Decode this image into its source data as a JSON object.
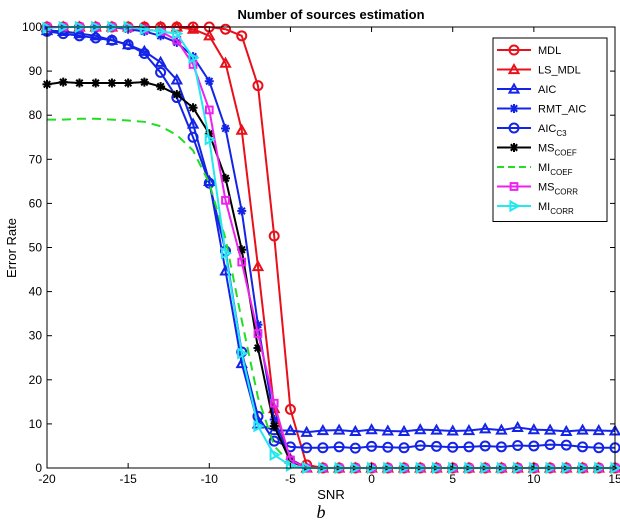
{
  "chart_data": {
    "type": "line",
    "title": "Number of sources estimation",
    "xlabel": "SNR",
    "ylabel": "Error Rate",
    "caption": "b",
    "xlim": [
      -20,
      15
    ],
    "ylim": [
      0,
      100
    ],
    "xticks": [
      -20,
      -15,
      -10,
      -5,
      0,
      5,
      10,
      15
    ],
    "yticks": [
      0,
      10,
      20,
      30,
      40,
      50,
      60,
      70,
      80,
      90,
      100
    ],
    "grid": false,
    "legend_position": "top-right",
    "x": [
      -20,
      -19,
      -18,
      -17,
      -16,
      -15,
      -14,
      -13,
      -12,
      -11,
      -10,
      -9,
      -8,
      -7,
      -6,
      -5,
      -4,
      -3,
      -2,
      -1,
      0,
      1,
      2,
      3,
      4,
      5,
      6,
      7,
      8,
      9,
      10,
      11,
      12,
      13,
      14,
      15
    ],
    "series": [
      {
        "name": "MDL",
        "sub": "",
        "color": "#e8101a",
        "marker": "circle",
        "dash": "",
        "values": [
          100,
          100,
          100,
          100,
          100,
          100,
          100,
          100,
          100,
          100,
          100,
          99.5,
          98,
          86.7,
          52.6,
          13.3,
          0.7,
          0,
          0,
          0,
          0,
          0,
          0,
          0,
          0,
          0,
          0,
          0,
          0,
          0,
          0,
          0,
          0,
          0,
          0,
          0
        ]
      },
      {
        "name": "LS_MDL",
        "sub": "",
        "color": "#e8101a",
        "marker": "triangle-up",
        "dash": "",
        "values": [
          100,
          100,
          100,
          100,
          100,
          100,
          100,
          100,
          100,
          99.5,
          98,
          91.8,
          76.6,
          45.7,
          13.5,
          2,
          0,
          0,
          0,
          0,
          0,
          0,
          0,
          0,
          0,
          0,
          0,
          0,
          0,
          0,
          0,
          0,
          0,
          0,
          0,
          0
        ]
      },
      {
        "name": "AIC",
        "sub": "",
        "color": "#1424e6",
        "marker": "triangle-up",
        "dash": "",
        "values": [
          99.2,
          99,
          98.5,
          98,
          97,
          96,
          94.5,
          92,
          88,
          78,
          65,
          44.7,
          23.7,
          10,
          8.5,
          8.5,
          8.1,
          8.5,
          8.6,
          8.3,
          8.7,
          8.4,
          8.3,
          8.7,
          8.6,
          8.4,
          8.5,
          8.9,
          8.6,
          9.2,
          8.7,
          8.6,
          8.3,
          8.6,
          8.5,
          8.4
        ]
      },
      {
        "name": "RMT_AIC",
        "sub": "",
        "color": "#1424e6",
        "marker": "star",
        "dash": "",
        "values": [
          100,
          100,
          100,
          100,
          100,
          99.5,
          99,
          98,
          96.5,
          93.3,
          87.7,
          77,
          58.3,
          32.5,
          11,
          2,
          0,
          0,
          0,
          0,
          0,
          0,
          0,
          0,
          0,
          0,
          0,
          0,
          0,
          0,
          0,
          0,
          0,
          0,
          0,
          0
        ]
      },
      {
        "name": "AIC",
        "sub": "C3",
        "color": "#1424e6",
        "marker": "circle",
        "dash": "",
        "values": [
          99,
          98.5,
          98,
          97.5,
          97,
          96,
          94,
          89.7,
          84,
          75,
          64.6,
          49.2,
          26.3,
          11.7,
          6.1,
          4.8,
          4.6,
          4.6,
          4.8,
          4.5,
          4.9,
          4.7,
          4.6,
          5.1,
          4.9,
          4.7,
          4.8,
          5,
          4.8,
          5.1,
          5,
          5.3,
          5.2,
          4.8,
          4.6,
          4.6
        ]
      },
      {
        "name": "MS",
        "sub": "COEF",
        "color": "#000000",
        "marker": "star",
        "dash": "",
        "values": [
          87,
          87.5,
          87.3,
          87.3,
          87.3,
          87.3,
          87.5,
          86.5,
          84.7,
          81.7,
          75.8,
          65.7,
          49.5,
          27.2,
          9.5,
          1.5,
          0,
          0,
          0,
          0,
          0,
          0,
          0,
          0,
          0,
          0,
          0,
          0,
          0,
          0,
          0,
          0,
          0,
          0,
          0,
          0
        ]
      },
      {
        "name": "MI",
        "sub": "COEF",
        "color": "#22dd22",
        "marker": "none",
        "dash": "9 6",
        "values": [
          79,
          79,
          79.2,
          79.2,
          79,
          78.8,
          78.5,
          77.5,
          75.5,
          72,
          64.6,
          52,
          33.5,
          16,
          5,
          1,
          0,
          0,
          0,
          0,
          0,
          0,
          0,
          0,
          0,
          0,
          0,
          0,
          0,
          0,
          0,
          0,
          0,
          0,
          0,
          0
        ]
      },
      {
        "name": "MS",
        "sub": "CORR",
        "color": "#ee22ee",
        "marker": "square",
        "dash": "",
        "values": [
          100,
          100,
          100,
          100,
          100,
          99.8,
          99.5,
          99,
          97,
          91.5,
          81.2,
          60.7,
          46.7,
          30.5,
          14.7,
          1.8,
          0,
          0,
          0,
          0,
          0,
          0,
          0,
          0,
          0,
          0,
          0,
          0,
          0,
          0,
          0,
          0,
          0,
          0,
          0,
          0
        ]
      },
      {
        "name": "MI",
        "sub": "CORR",
        "color": "#22e8f0",
        "marker": "triangle-right",
        "dash": "",
        "values": [
          99.8,
          100,
          100,
          100,
          100,
          100,
          99.5,
          99,
          98.5,
          93,
          74.5,
          48.7,
          26,
          9.5,
          3,
          0.5,
          0,
          0,
          0,
          0,
          0,
          0,
          0,
          0,
          0,
          0,
          0,
          0,
          0,
          0,
          0,
          0,
          0,
          0,
          0,
          0
        ]
      }
    ]
  }
}
